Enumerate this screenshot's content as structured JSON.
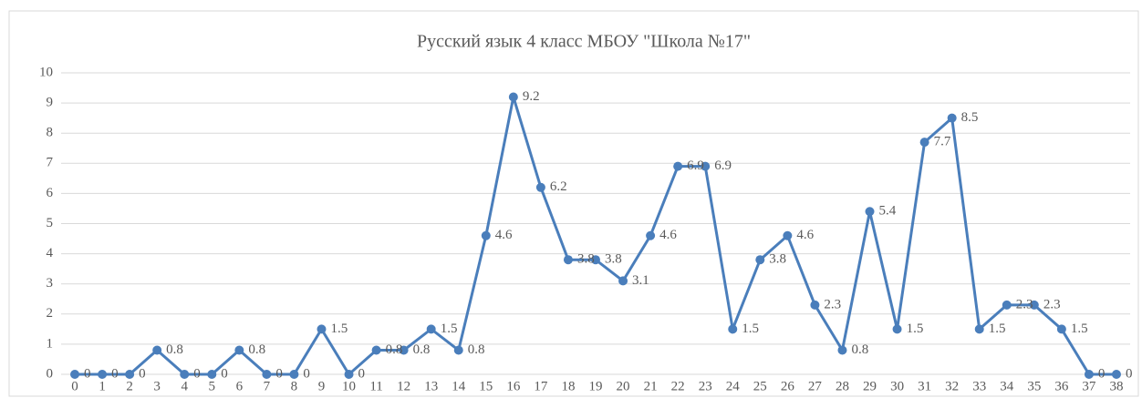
{
  "chart_data": {
    "type": "line",
    "title": "Русский язык 4 класс МБОУ \"Школа №17\"",
    "categories": [
      0,
      1,
      2,
      3,
      4,
      5,
      6,
      7,
      8,
      9,
      10,
      11,
      12,
      13,
      14,
      15,
      16,
      17,
      18,
      19,
      20,
      21,
      22,
      23,
      24,
      25,
      26,
      27,
      28,
      29,
      30,
      31,
      32,
      33,
      34,
      35,
      36,
      37,
      38
    ],
    "series": [
      {
        "color": "#4a7ebb",
        "values": [
          0,
          0,
          0,
          0.8,
          0,
          0,
          0.8,
          0,
          0,
          1.5,
          0,
          0.8,
          0.8,
          1.5,
          0.8,
          4.6,
          9.2,
          6.2,
          3.8,
          3.8,
          3.1,
          4.6,
          6.9,
          6.9,
          1.5,
          3.8,
          4.6,
          2.3,
          0.8,
          5.4,
          1.5,
          7.7,
          8.5,
          1.5,
          2.3,
          2.3,
          1.5,
          0,
          0
        ]
      }
    ],
    "ylim": [
      0,
      10
    ],
    "yticks": [
      0,
      1,
      2,
      3,
      4,
      5,
      6,
      7,
      8,
      9,
      10
    ],
    "grid": true
  }
}
